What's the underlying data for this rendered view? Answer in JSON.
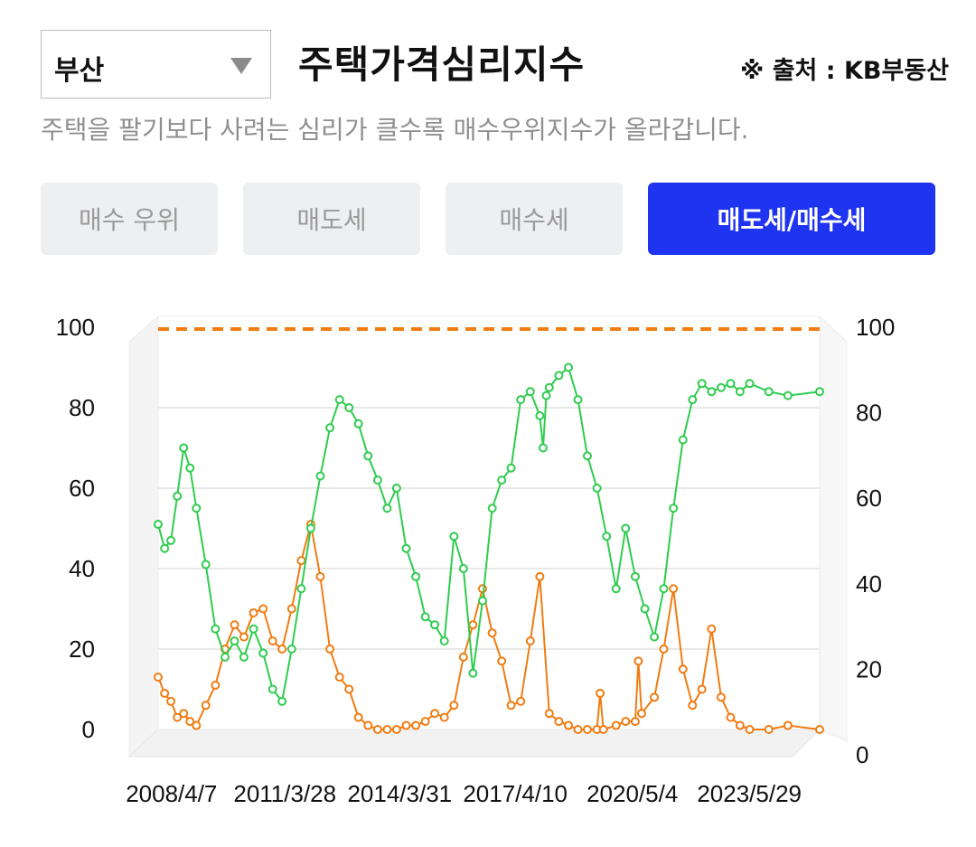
{
  "header": {
    "region_selected": "부산",
    "title": "주택가격심리지수",
    "source": "※ 출처 : KB부동산",
    "subtitle": "주택을 팔기보다 사려는 심리가 클수록 매수우위지수가 올라갑니다."
  },
  "tabs": [
    {
      "label": "매수 우위",
      "active": false
    },
    {
      "label": "매도세",
      "active": false
    },
    {
      "label": "매수세",
      "active": false
    },
    {
      "label": "매도세/매수세",
      "active": true
    }
  ],
  "colors": {
    "accent": "#1f34f0",
    "series_orange": "#f07c12",
    "series_green": "#2fcc4f"
  },
  "chart_data": {
    "type": "line",
    "x_tick_labels": [
      "2008/4/7",
      "2011/3/28",
      "2014/3/31",
      "2017/4/10",
      "2020/5/4",
      "2023/5/29"
    ],
    "x_tick_dates": [
      "2008-04-07",
      "2011-03-28",
      "2014-03-31",
      "2017-04-10",
      "2020-05-04",
      "2023-05-29"
    ],
    "x_range": [
      "2007-12-01",
      "2025-04-01"
    ],
    "y_left": {
      "range": [
        0,
        100
      ],
      "ticks": [
        0,
        20,
        40,
        60,
        80,
        100
      ]
    },
    "y_right": {
      "range": [
        0,
        100
      ],
      "ticks": [
        0,
        20,
        40,
        60,
        80,
        100
      ]
    },
    "grid": true,
    "reference_line": {
      "value": 100,
      "style": "dashed",
      "color": "#f07c12"
    },
    "series": [
      {
        "color": "#f07c12",
        "axis": "left",
        "points": [
          [
            "2007-12-01",
            13
          ],
          [
            "2008-02-01",
            9
          ],
          [
            "2008-04-01",
            7
          ],
          [
            "2008-06-01",
            3
          ],
          [
            "2008-08-01",
            4
          ],
          [
            "2008-10-01",
            2
          ],
          [
            "2008-12-01",
            1
          ],
          [
            "2009-03-01",
            6
          ],
          [
            "2009-06-01",
            11
          ],
          [
            "2009-09-01",
            20
          ],
          [
            "2009-12-01",
            26
          ],
          [
            "2010-03-01",
            23
          ],
          [
            "2010-06-01",
            29
          ],
          [
            "2010-09-01",
            30
          ],
          [
            "2010-12-01",
            22
          ],
          [
            "2011-03-01",
            20
          ],
          [
            "2011-06-01",
            30
          ],
          [
            "2011-09-01",
            42
          ],
          [
            "2011-12-01",
            51
          ],
          [
            "2012-03-01",
            38
          ],
          [
            "2012-06-01",
            20
          ],
          [
            "2012-09-01",
            13
          ],
          [
            "2012-12-01",
            10
          ],
          [
            "2013-03-01",
            3
          ],
          [
            "2013-06-01",
            1
          ],
          [
            "2013-09-01",
            0
          ],
          [
            "2013-12-01",
            0
          ],
          [
            "2014-03-01",
            0
          ],
          [
            "2014-06-01",
            1
          ],
          [
            "2014-09-01",
            1
          ],
          [
            "2014-12-01",
            2
          ],
          [
            "2015-03-01",
            4
          ],
          [
            "2015-06-01",
            3
          ],
          [
            "2015-09-01",
            6
          ],
          [
            "2015-12-01",
            18
          ],
          [
            "2016-03-01",
            26
          ],
          [
            "2016-06-01",
            35
          ],
          [
            "2016-09-01",
            24
          ],
          [
            "2016-12-01",
            17
          ],
          [
            "2017-03-01",
            6
          ],
          [
            "2017-06-01",
            7
          ],
          [
            "2017-09-01",
            22
          ],
          [
            "2017-12-01",
            38
          ],
          [
            "2018-03-01",
            4
          ],
          [
            "2018-06-01",
            2
          ],
          [
            "2018-09-01",
            1
          ],
          [
            "2018-12-01",
            0
          ],
          [
            "2019-03-01",
            0
          ],
          [
            "2019-06-01",
            0
          ],
          [
            "2019-07-01",
            9
          ],
          [
            "2019-08-01",
            0
          ],
          [
            "2019-12-01",
            1
          ],
          [
            "2020-03-01",
            2
          ],
          [
            "2020-06-01",
            2
          ],
          [
            "2020-07-01",
            17
          ],
          [
            "2020-08-01",
            4
          ],
          [
            "2020-12-01",
            8
          ],
          [
            "2021-03-01",
            20
          ],
          [
            "2021-06-01",
            35
          ],
          [
            "2021-09-01",
            15
          ],
          [
            "2021-12-01",
            6
          ],
          [
            "2022-03-01",
            10
          ],
          [
            "2022-06-01",
            25
          ],
          [
            "2022-09-01",
            8
          ],
          [
            "2022-12-01",
            3
          ],
          [
            "2023-03-01",
            1
          ],
          [
            "2023-06-01",
            0
          ],
          [
            "2023-12-01",
            0
          ],
          [
            "2024-06-01",
            1
          ],
          [
            "2025-04-01",
            0
          ]
        ]
      },
      {
        "color": "#2fcc4f",
        "axis": "left",
        "points": [
          [
            "2007-12-01",
            51
          ],
          [
            "2008-02-01",
            45
          ],
          [
            "2008-04-01",
            47
          ],
          [
            "2008-06-01",
            58
          ],
          [
            "2008-08-01",
            70
          ],
          [
            "2008-10-01",
            65
          ],
          [
            "2008-12-01",
            55
          ],
          [
            "2009-03-01",
            41
          ],
          [
            "2009-06-01",
            25
          ],
          [
            "2009-09-01",
            18
          ],
          [
            "2009-12-01",
            22
          ],
          [
            "2010-03-01",
            18
          ],
          [
            "2010-06-01",
            25
          ],
          [
            "2010-09-01",
            19
          ],
          [
            "2010-12-01",
            10
          ],
          [
            "2011-03-01",
            7
          ],
          [
            "2011-06-01",
            20
          ],
          [
            "2011-09-01",
            35
          ],
          [
            "2011-12-01",
            50
          ],
          [
            "2012-03-01",
            63
          ],
          [
            "2012-06-01",
            75
          ],
          [
            "2012-09-01",
            82
          ],
          [
            "2012-12-01",
            80
          ],
          [
            "2013-03-01",
            76
          ],
          [
            "2013-06-01",
            68
          ],
          [
            "2013-09-01",
            62
          ],
          [
            "2013-12-01",
            55
          ],
          [
            "2014-03-01",
            60
          ],
          [
            "2014-06-01",
            45
          ],
          [
            "2014-09-01",
            38
          ],
          [
            "2014-12-01",
            28
          ],
          [
            "2015-03-01",
            26
          ],
          [
            "2015-06-01",
            22
          ],
          [
            "2015-09-01",
            48
          ],
          [
            "2015-12-01",
            40
          ],
          [
            "2016-03-01",
            14
          ],
          [
            "2016-06-01",
            32
          ],
          [
            "2016-09-01",
            55
          ],
          [
            "2016-12-01",
            62
          ],
          [
            "2017-03-01",
            65
          ],
          [
            "2017-06-01",
            82
          ],
          [
            "2017-09-01",
            84
          ],
          [
            "2017-12-01",
            78
          ],
          [
            "2018-01-01",
            70
          ],
          [
            "2018-02-01",
            83
          ],
          [
            "2018-03-01",
            85
          ],
          [
            "2018-06-01",
            88
          ],
          [
            "2018-09-01",
            90
          ],
          [
            "2018-12-01",
            82
          ],
          [
            "2019-03-01",
            68
          ],
          [
            "2019-06-01",
            60
          ],
          [
            "2019-09-01",
            48
          ],
          [
            "2019-12-01",
            35
          ],
          [
            "2020-03-01",
            50
          ],
          [
            "2020-06-01",
            38
          ],
          [
            "2020-09-01",
            30
          ],
          [
            "2020-12-01",
            23
          ],
          [
            "2021-03-01",
            35
          ],
          [
            "2021-06-01",
            55
          ],
          [
            "2021-09-01",
            72
          ],
          [
            "2021-12-01",
            82
          ],
          [
            "2022-03-01",
            86
          ],
          [
            "2022-06-01",
            84
          ],
          [
            "2022-09-01",
            85
          ],
          [
            "2022-12-01",
            86
          ],
          [
            "2023-03-01",
            84
          ],
          [
            "2023-06-01",
            86
          ],
          [
            "2023-12-01",
            84
          ],
          [
            "2024-06-01",
            83
          ],
          [
            "2025-04-01",
            84
          ]
        ]
      }
    ]
  }
}
